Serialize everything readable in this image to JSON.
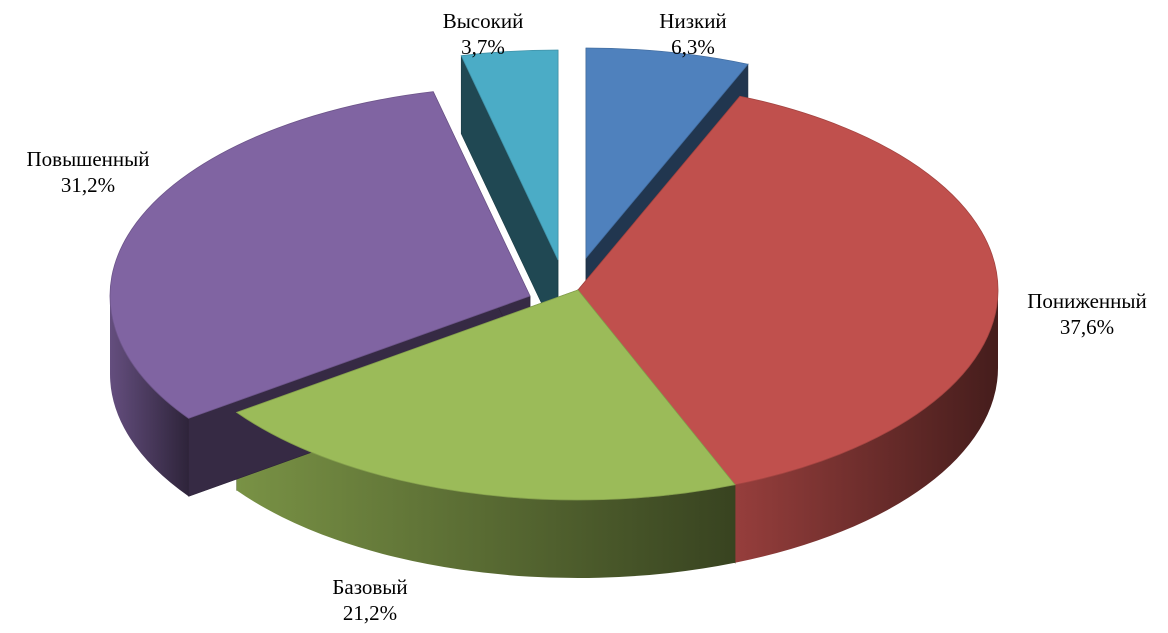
{
  "chart_data": {
    "type": "pie",
    "variant": "3d-exploded",
    "slices": [
      {
        "label": "Низкий",
        "value": 6.3,
        "display": "6,3%",
        "color": "#4F81BD"
      },
      {
        "label": "Пониженный",
        "value": 37.6,
        "display": "37,6%",
        "color": "#C0504D"
      },
      {
        "label": "Базовый",
        "value": 21.2,
        "display": "21,2%",
        "color": "#9BBB59"
      },
      {
        "label": "Повышенный",
        "value": 31.2,
        "display": "31,2%",
        "color": "#8064A2"
      },
      {
        "label": "Высокий",
        "value": 3.7,
        "display": "3,7%",
        "color": "#4BACC6"
      }
    ],
    "legend": "none"
  }
}
